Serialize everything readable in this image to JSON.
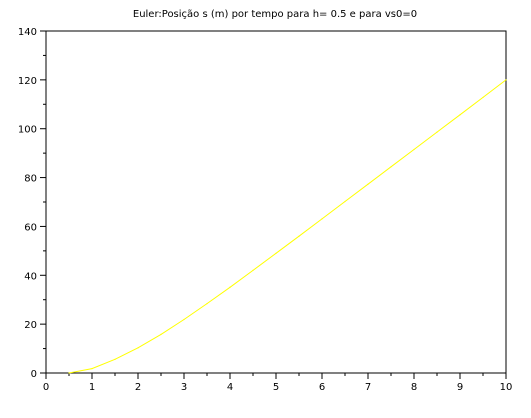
{
  "chart_data": {
    "type": "line",
    "title": "Euler:Posição s (m) por tempo para h= 0.5 e para vs0=0",
    "xlabel": "",
    "ylabel": "",
    "xlim": [
      0,
      10
    ],
    "ylim": [
      0,
      140
    ],
    "x_ticks": [
      "0",
      "1",
      "2",
      "3",
      "4",
      "5",
      "6",
      "7",
      "8",
      "9",
      "10"
    ],
    "y_ticks": [
      "0",
      "20",
      "40",
      "60",
      "80",
      "100",
      "120",
      "140"
    ],
    "grid": false,
    "legend": "none",
    "series": [
      {
        "color": "#ffff00",
        "x": [
          0.5,
          1,
          1.5,
          2,
          2.5,
          3,
          3.5,
          4,
          4.5,
          5,
          5.5,
          6,
          6.5,
          7,
          7.5,
          8,
          8.5,
          9,
          9.5,
          10
        ],
        "y": [
          0,
          1.8,
          5.6,
          10.3,
          15.8,
          21.9,
          28.4,
          35.1,
          42.0,
          49.0,
          56.0,
          63.1,
          70.2,
          77.3,
          84.4,
          91.5,
          98.6,
          105.7,
          112.8,
          120.0
        ]
      }
    ]
  }
}
